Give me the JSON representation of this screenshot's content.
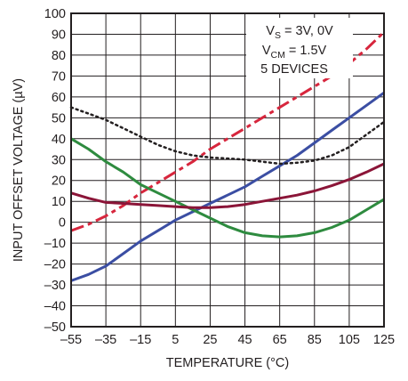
{
  "chart_data": {
    "type": "line",
    "xlabel": "TEMPERATURE (°C)",
    "ylabel": "INPUT OFFSET VOLTAGE (µV)",
    "xlim": [
      -55,
      125
    ],
    "ylim": [
      -50,
      100
    ],
    "x_ticks": [
      -55,
      -35,
      -15,
      5,
      25,
      45,
      65,
      85,
      105,
      125
    ],
    "x_tick_labels": [
      "–55",
      "–35",
      "–15",
      "5",
      "25",
      "45",
      "65",
      "85",
      "105",
      "125"
    ],
    "y_ticks": [
      -50,
      -40,
      -30,
      -20,
      -10,
      0,
      10,
      20,
      30,
      40,
      50,
      60,
      70,
      80,
      90,
      100
    ],
    "y_tick_labels": [
      "–50",
      "–40",
      "–30",
      "–20",
      "–10",
      "0",
      "10",
      "20",
      "30",
      "40",
      "50",
      "60",
      "70",
      "80",
      "90",
      "100"
    ],
    "grid": true,
    "annotation": {
      "line1_main": "V",
      "line1_sub": "S",
      "line1_rest": " = 3V, 0V",
      "line2_main": "V",
      "line2_sub": "CM",
      "line2_rest": " = 1.5V",
      "line3": "5 DEVICES"
    },
    "series": [
      {
        "color": "#d7263d",
        "style": "dashdot",
        "x": [
          -55,
          -45,
          -35,
          -25,
          -15,
          -5,
          5,
          15,
          25,
          35,
          45,
          55,
          65,
          75,
          85,
          95,
          105,
          115,
          125
        ],
        "y": [
          -4,
          -1,
          3,
          8,
          14,
          19,
          24,
          29,
          35,
          40,
          45,
          50,
          55,
          60,
          65,
          70,
          76,
          83,
          91
        ]
      },
      {
        "color": "#3b4ea3",
        "style": "solid",
        "x": [
          -55,
          -45,
          -35,
          -25,
          -15,
          -5,
          5,
          15,
          25,
          35,
          45,
          55,
          65,
          75,
          85,
          95,
          105,
          115,
          125
        ],
        "y": [
          -28,
          -25,
          -21,
          -15,
          -9,
          -4,
          1,
          5,
          9,
          13,
          17,
          22,
          27,
          32,
          38,
          44,
          50,
          56,
          62
        ]
      },
      {
        "color": "#231f20",
        "style": "dotted",
        "x": [
          -55,
          -45,
          -35,
          -25,
          -15,
          -5,
          5,
          15,
          25,
          35,
          45,
          55,
          65,
          75,
          85,
          95,
          105,
          115,
          125
        ],
        "y": [
          55,
          52,
          49,
          45,
          41,
          37,
          34,
          32,
          31,
          30.5,
          30,
          29,
          28,
          28.5,
          29.5,
          32,
          36,
          42,
          48
        ]
      },
      {
        "color": "#2e8b3f",
        "style": "solid",
        "x": [
          -55,
          -45,
          -35,
          -25,
          -15,
          -5,
          5,
          15,
          25,
          35,
          45,
          55,
          65,
          75,
          85,
          95,
          105,
          115,
          125
        ],
        "y": [
          40,
          35,
          29,
          24,
          18,
          14,
          10,
          6,
          2,
          -2,
          -5,
          -6.5,
          -7,
          -6.5,
          -5,
          -2.5,
          1,
          6,
          11
        ]
      },
      {
        "color": "#8b1538",
        "style": "solid",
        "x": [
          -55,
          -45,
          -35,
          -25,
          -15,
          -5,
          5,
          15,
          25,
          35,
          45,
          55,
          65,
          75,
          85,
          95,
          105,
          115,
          125
        ],
        "y": [
          14,
          11.5,
          9.5,
          9,
          8.5,
          8,
          7.5,
          7,
          7,
          7.5,
          8.5,
          10,
          11.5,
          13,
          15,
          17.5,
          20.5,
          24,
          28
        ]
      }
    ]
  }
}
